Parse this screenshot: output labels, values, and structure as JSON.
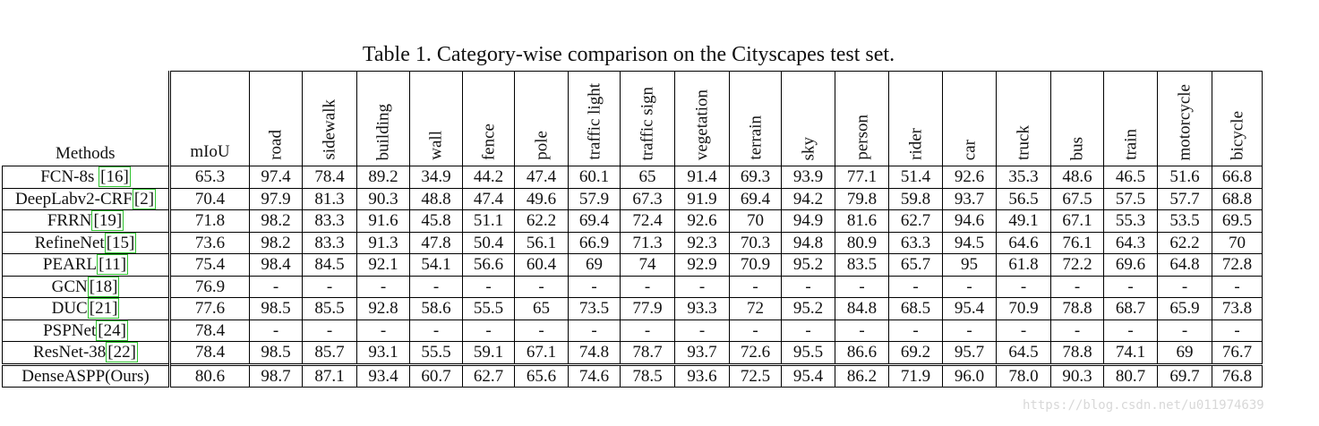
{
  "caption": "Table 1. Category-wise comparison on the Cityscapes test set.",
  "header": {
    "methods": "Methods",
    "miou": "mIoU",
    "categories": [
      "road",
      "sidewalk",
      "building",
      "wall",
      "fence",
      "pole",
      "traffic light",
      "traffic sign",
      "vegetation",
      "terrain",
      "sky",
      "person",
      "rider",
      "car",
      "truck",
      "bus",
      "train",
      "motorcycle",
      "bicycle"
    ]
  },
  "rows": [
    {
      "name": "FCN-8s ",
      "ref": "16",
      "miou": "65.3",
      "values": [
        "97.4",
        "78.4",
        "89.2",
        "34.9",
        "44.2",
        "47.4",
        "60.1",
        "65",
        "91.4",
        "69.3",
        "93.9",
        "77.1",
        "51.4",
        "92.6",
        "35.3",
        "48.6",
        "46.5",
        "51.6",
        "66.8"
      ]
    },
    {
      "name": "DeepLabv2-CRF",
      "ref": "2",
      "miou": "70.4",
      "values": [
        "97.9",
        "81.3",
        "90.3",
        "48.8",
        "47.4",
        "49.6",
        "57.9",
        "67.3",
        "91.9",
        "69.4",
        "94.2",
        "79.8",
        "59.8",
        "93.7",
        "56.5",
        "67.5",
        "57.5",
        "57.7",
        "68.8"
      ]
    },
    {
      "name": "FRRN",
      "ref": "19",
      "miou": "71.8",
      "values": [
        "98.2",
        "83.3",
        "91.6",
        "45.8",
        "51.1",
        "62.2",
        "69.4",
        "72.4",
        "92.6",
        "70",
        "94.9",
        "81.6",
        "62.7",
        "94.6",
        "49.1",
        "67.1",
        "55.3",
        "53.5",
        "69.5"
      ]
    },
    {
      "name": "RefineNet",
      "ref": "15",
      "miou": "73.6",
      "values": [
        "98.2",
        "83.3",
        "91.3",
        "47.8",
        "50.4",
        "56.1",
        "66.9",
        "71.3",
        "92.3",
        "70.3",
        "94.8",
        "80.9",
        "63.3",
        "94.5",
        "64.6",
        "76.1",
        "64.3",
        "62.2",
        "70"
      ]
    },
    {
      "name": "PEARL",
      "ref": "11",
      "miou": "75.4",
      "values": [
        "98.4",
        "84.5",
        "92.1",
        "54.1",
        "56.6",
        "60.4",
        "69",
        "74",
        "92.9",
        "70.9",
        "95.2",
        "83.5",
        "65.7",
        "95",
        "61.8",
        "72.2",
        "69.6",
        "64.8",
        "72.8"
      ]
    },
    {
      "name": "GCN",
      "ref": "18",
      "miou": "76.9",
      "values": [
        "-",
        "-",
        "-",
        "-",
        "-",
        "-",
        "-",
        "-",
        "-",
        "-",
        "-",
        "-",
        "-",
        "-",
        "-",
        "-",
        "-",
        "-",
        "-"
      ]
    },
    {
      "name": "DUC",
      "ref": "21",
      "miou": "77.6",
      "values": [
        "98.5",
        "85.5",
        "92.8",
        "58.6",
        "55.5",
        "65",
        "73.5",
        "77.9",
        "93.3",
        "72",
        "95.2",
        "84.8",
        "68.5",
        "95.4",
        "70.9",
        "78.8",
        "68.7",
        "65.9",
        "73.8"
      ]
    },
    {
      "name": "PSPNet",
      "ref": "24",
      "miou": "78.4",
      "values": [
        "-",
        "-",
        "-",
        "-",
        "-",
        "-",
        "-",
        "-",
        "-",
        "-",
        "-",
        "-",
        "-",
        "-",
        "-",
        "-",
        "-",
        "-",
        "-"
      ]
    },
    {
      "name": "ResNet-38",
      "ref": "22",
      "miou": "78.4",
      "values": [
        "98.5",
        "85.7",
        "93.1",
        "55.5",
        "59.1",
        "67.1",
        "74.8",
        "78.7",
        "93.7",
        "72.6",
        "95.5",
        "86.6",
        "69.2",
        "95.7",
        "64.5",
        "78.8",
        "74.1",
        "69",
        "76.7"
      ]
    }
  ],
  "ours": {
    "name": "DenseASPP(Ours)",
    "miou": "80.6",
    "values": [
      "98.7",
      "87.1",
      "93.4",
      "60.7",
      "62.7",
      "65.6",
      "74.6",
      "78.5",
      "93.6",
      "72.5",
      "95.4",
      "86.2",
      "71.9",
      "96.0",
      "78.0",
      "90.3",
      "80.7",
      "69.7",
      "76.8"
    ]
  },
  "watermark": "https://blog.csdn.net/u011974639",
  "colors": {
    "citation_box": "#2ec32e",
    "watermark": "#d8d8d8"
  }
}
